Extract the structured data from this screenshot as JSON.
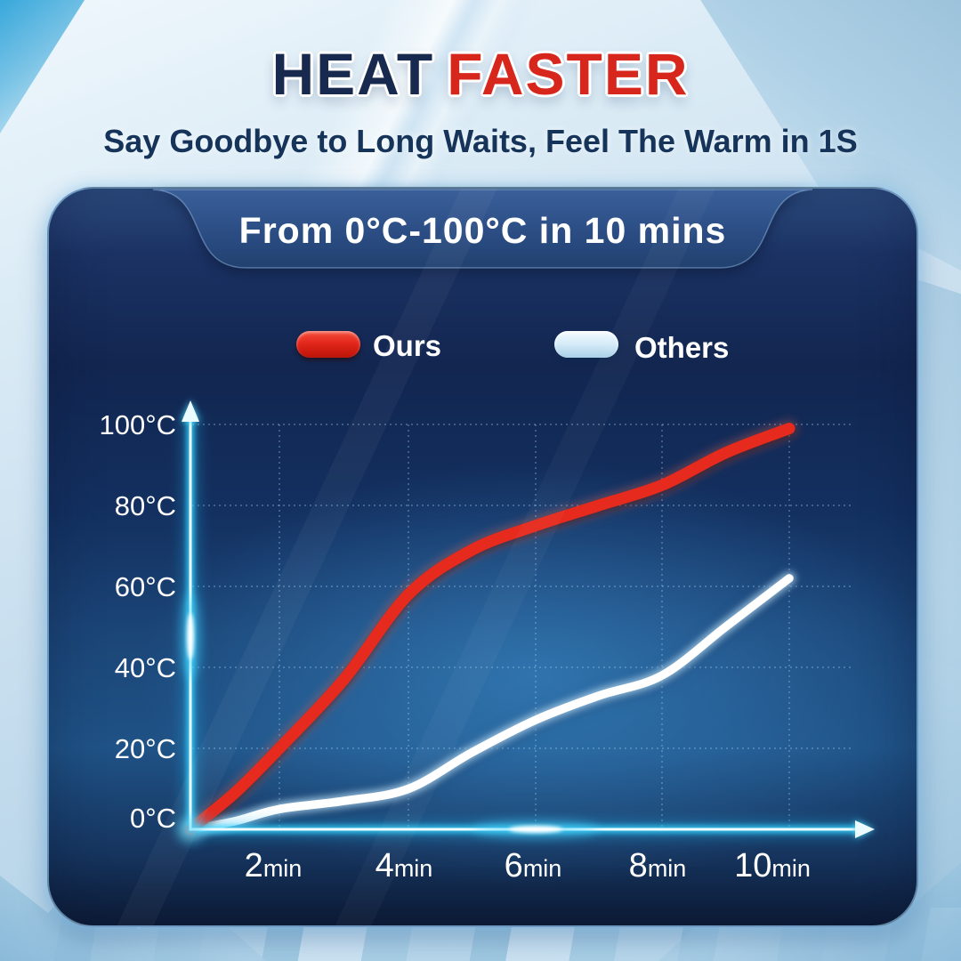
{
  "page": {
    "title_part1": "HEAT",
    "title_part2": "FASTER",
    "subtitle": "Say Goodbye to Long Waits, Feel The Warm in 1S"
  },
  "panel": {
    "tab_label": "From 0°C-100°C in 10 mins",
    "colors": {
      "panel_blue": "#1b4577",
      "panel_dark": "#0d1b36",
      "axis_glow_cyan": "#35d3ff"
    }
  },
  "legend": {
    "items": [
      {
        "label": "Ours",
        "swatch_color": "#e3271b"
      },
      {
        "label": "Others",
        "swatch_color": "#cfe8f7"
      }
    ]
  },
  "chart_data": {
    "type": "line",
    "title": "From 0°C-100°C in 10 mins",
    "xlabel": "",
    "ylabel": "",
    "x_unit": "min",
    "y_unit": "°C",
    "x": [
      0,
      1,
      2,
      3,
      4,
      5,
      6,
      7,
      8,
      9,
      10
    ],
    "xlim": [
      0,
      10.8
    ],
    "ylim": [
      0,
      103
    ],
    "grid": "dotted",
    "legend_position": "top-center",
    "xticks": [
      {
        "num": "2",
        "unit": "min"
      },
      {
        "num": "4",
        "unit": "min"
      },
      {
        "num": "6",
        "unit": "min"
      },
      {
        "num": "8",
        "unit": "min"
      },
      {
        "num": "10",
        "unit": "min"
      }
    ],
    "xtick_values": [
      2,
      4,
      6,
      8,
      10
    ],
    "yticks": [
      "0°C",
      "20°C",
      "40°C",
      "60°C",
      "80°C",
      "100°C"
    ],
    "ytick_values": [
      0,
      20,
      40,
      60,
      80,
      100
    ],
    "series": [
      {
        "name": "Ours",
        "color": "#e3271b",
        "values": [
          0,
          9,
          20,
          37,
          58,
          69,
          75,
          80,
          85,
          93,
          99
        ]
      },
      {
        "name": "Others",
        "color": "#ffffff",
        "values": [
          0,
          2,
          5,
          7,
          10,
          19,
          27,
          33,
          38,
          50,
          62
        ]
      }
    ]
  }
}
